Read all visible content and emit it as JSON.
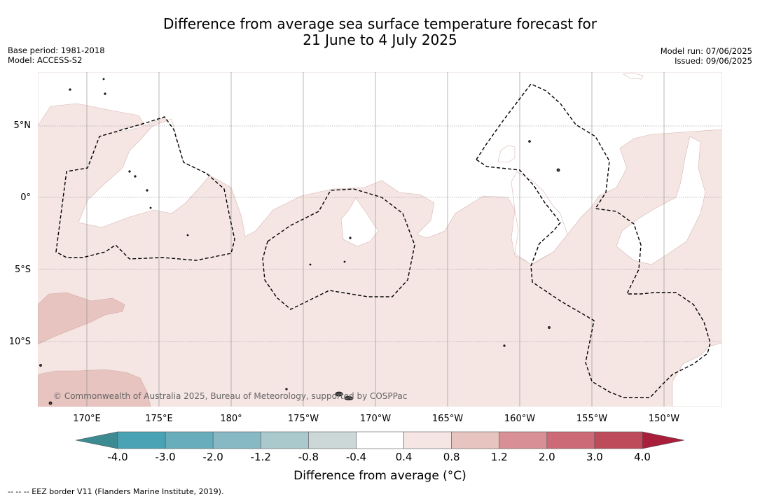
{
  "title_line1": "Difference from average sea surface temperature forecast for",
  "title_line2": "21 June to 4 July 2025",
  "meta_left": {
    "base_period": "Base period: 1981-2018",
    "model": "Model: ACCESS-S2"
  },
  "meta_right": {
    "model_run": "Model run: 07/06/2025",
    "issued": "Issued: 09/06/2025"
  },
  "lat_labels": [
    "5°N",
    "0°",
    "5°S",
    "10°S"
  ],
  "lon_labels": [
    "170°E",
    "175°E",
    "180°",
    "175°W",
    "170°W",
    "165°W",
    "160°W",
    "155°W",
    "150°W"
  ],
  "colorbar": {
    "ticks": [
      "-4.0",
      "-3.0",
      "-2.0",
      "-1.2",
      "-0.8",
      "-0.4",
      "0.4",
      "0.8",
      "1.2",
      "2.0",
      "3.0",
      "4.0"
    ],
    "colors": [
      "#4aa3b4",
      "#67adbb",
      "#86b9c3",
      "#a9c9cd",
      "#ccd8d8",
      "#ffffff",
      "#f5e6e4",
      "#e7c4bf",
      "#d88f95",
      "#cc6a77",
      "#be4b5a"
    ],
    "under_color": "#3d8b92",
    "over_color": "#a91e3b",
    "label": "Difference from average (°C)"
  },
  "colors": {
    "slight_warm": "#f5e6e4",
    "moderate_warm": "#e7c4bf",
    "neutral": "#ffffff",
    "gridline": "#888888",
    "eez": "#000000"
  },
  "copyright": "© Commonwealth of Australia 2025, Bureau of Meteorology, supported by COSPPac",
  "eez_note": "--  --  -- EEZ border V11 (Flanders Marine Institute, 2019)."
}
